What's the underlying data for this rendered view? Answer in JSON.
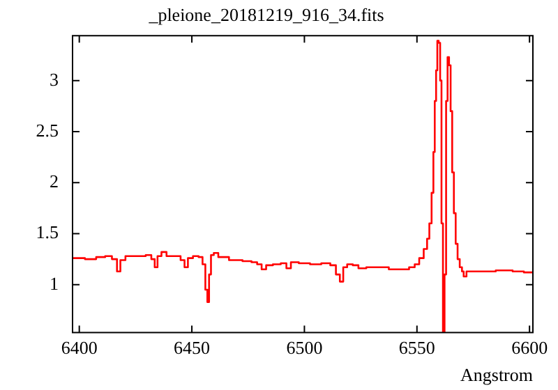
{
  "chart_data": {
    "type": "step",
    "title": "_pleione_20181219_916_34.fits",
    "xlabel": "Angstrom",
    "x": [
      6397,
      6400,
      6405,
      6410,
      6413,
      6416,
      6417.5,
      6419,
      6422,
      6428,
      6431,
      6433,
      6434,
      6435.5,
      6437.5,
      6440,
      6444,
      6446,
      6447.5,
      6449,
      6452,
      6454,
      6455.5,
      6456.5,
      6457.3,
      6458,
      6459,
      6460.5,
      6463,
      6470,
      6475,
      6478,
      6480,
      6482,
      6484,
      6488,
      6491,
      6493,
      6495,
      6500,
      6505,
      6510,
      6513,
      6515,
      6516.5,
      6518,
      6520,
      6523,
      6525,
      6530,
      6535,
      6540,
      6545,
      6548,
      6550,
      6552,
      6554,
      6555,
      6556,
      6557,
      6557.6,
      6558.2,
      6558.8,
      6559.3,
      6560,
      6560.6,
      6561.2,
      6561.9,
      6562.6,
      6563.3,
      6563.9,
      6564.6,
      6565.3,
      6566,
      6566.8,
      6567.6,
      6568.5,
      6569.5,
      6570.5,
      6571,
      6573,
      6580,
      6590,
      6595,
      6600,
      6601.5
    ],
    "series": [
      {
        "color": "#ff0000",
        "values": [
          1.26,
          1.26,
          1.25,
          1.27,
          1.28,
          1.25,
          1.13,
          1.24,
          1.28,
          1.28,
          1.29,
          1.25,
          1.17,
          1.28,
          1.32,
          1.28,
          1.28,
          1.24,
          1.17,
          1.26,
          1.28,
          1.27,
          1.2,
          0.95,
          0.83,
          1.1,
          1.29,
          1.31,
          1.27,
          1.24,
          1.23,
          1.22,
          1.2,
          1.15,
          1.19,
          1.2,
          1.21,
          1.16,
          1.22,
          1.21,
          1.2,
          1.21,
          1.19,
          1.1,
          1.03,
          1.17,
          1.2,
          1.19,
          1.16,
          1.17,
          1.17,
          1.15,
          1.15,
          1.17,
          1.2,
          1.26,
          1.35,
          1.45,
          1.6,
          1.9,
          2.3,
          2.8,
          3.1,
          3.39,
          3.37,
          3.0,
          1.6,
          0.53,
          1.1,
          2.8,
          3.23,
          3.15,
          2.7,
          2.1,
          1.7,
          1.4,
          1.25,
          1.17,
          1.13,
          1.08,
          1.13,
          1.13,
          1.14,
          1.13,
          1.12,
          1.12
        ]
      }
    ],
    "xlim": [
      6397,
      6601.5
    ],
    "xticks": [
      6400,
      6450,
      6500,
      6550,
      6600
    ],
    "ylim": [
      0.53,
      3.44
    ],
    "yticks": [
      1,
      1.5,
      2,
      2.5,
      3
    ],
    "grid": false,
    "legend": false,
    "marker": "none",
    "line_style": "solid"
  }
}
